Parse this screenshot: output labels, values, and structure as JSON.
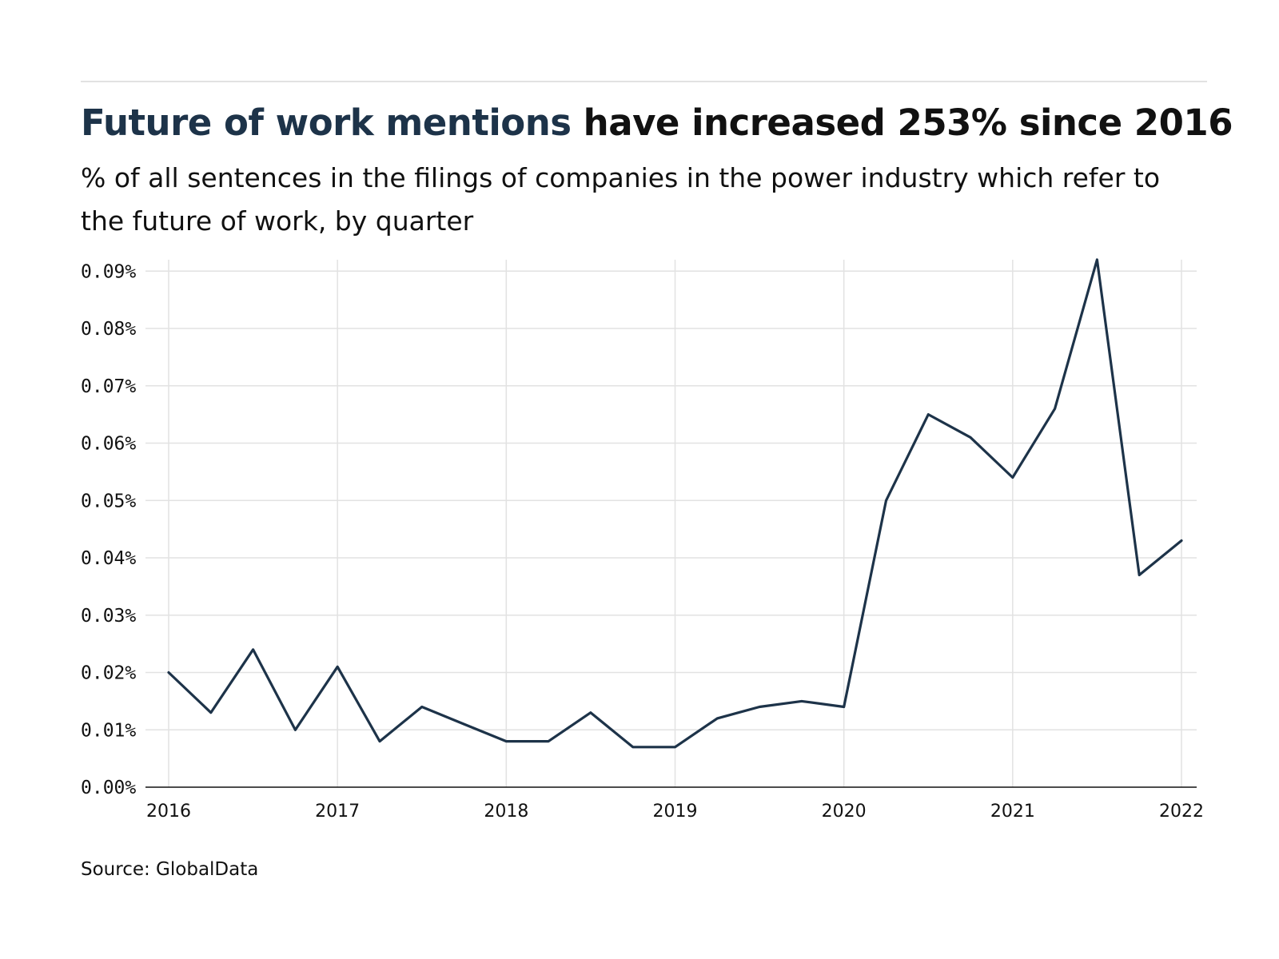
{
  "header": {
    "title_highlight": "Future of work mentions",
    "title_rest": " have increased 253% since 2016",
    "subtitle": "% of all sentences in the filings of companies in the power industry which refer to the future of work, by quarter"
  },
  "footer": {
    "source": "Source: GlobalData"
  },
  "colors": {
    "line": "#1d3349",
    "highlight": "#1d3349",
    "grid": "#e2e2e2",
    "axis": "#111111"
  },
  "chart_data": {
    "type": "line",
    "title": "Future of work mentions have increased 253% since 2016",
    "subtitle": "% of all sentences in the filings of companies in the power industry which refer to the future of work, by quarter",
    "xlabel": "",
    "ylabel": "",
    "x_ticks": [
      "2016",
      "2017",
      "2018",
      "2019",
      "2020",
      "2021",
      "2022"
    ],
    "y_ticks": [
      "0.00%",
      "0.01%",
      "0.02%",
      "0.03%",
      "0.04%",
      "0.05%",
      "0.06%",
      "0.07%",
      "0.08%",
      "0.09%"
    ],
    "xlim": [
      2016,
      2022
    ],
    "ylim": [
      0,
      0.09
    ],
    "grid": true,
    "legend": "none",
    "series": [
      {
        "x": [
          "2016 Q1",
          "2016 Q2",
          "2016 Q3",
          "2016 Q4",
          "2017 Q1",
          "2017 Q2",
          "2017 Q3",
          "2017 Q4",
          "2018 Q1",
          "2018 Q2",
          "2018 Q3",
          "2018 Q4",
          "2019 Q1",
          "2019 Q2",
          "2019 Q3",
          "2019 Q4",
          "2020 Q1",
          "2020 Q2",
          "2020 Q3",
          "2020 Q4",
          "2021 Q1",
          "2021 Q2",
          "2021 Q3",
          "2021 Q4",
          "2022 Q1"
        ],
        "values": [
          0.02,
          0.013,
          0.024,
          0.01,
          0.021,
          0.008,
          0.014,
          0.011,
          0.008,
          0.008,
          0.013,
          0.007,
          0.007,
          0.012,
          0.014,
          0.015,
          0.014,
          0.05,
          0.065,
          0.061,
          0.054,
          0.066,
          0.092,
          0.037,
          0.043
        ]
      }
    ]
  }
}
